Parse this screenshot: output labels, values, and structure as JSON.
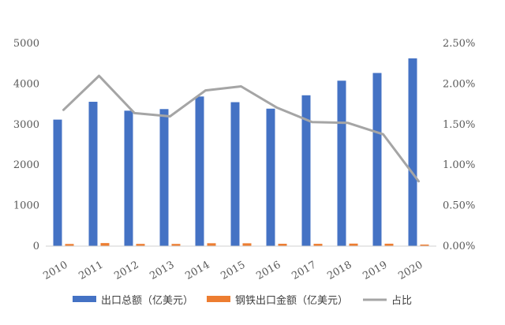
{
  "chart_data": {
    "type": "bar",
    "categories": [
      "2010",
      "2011",
      "2012",
      "2013",
      "2014",
      "2015",
      "2016",
      "2017",
      "2018",
      "2019",
      "2020"
    ],
    "series": [
      {
        "name": "出口总额（亿美元）",
        "type": "bar",
        "axis": "left",
        "color": "#4472C4",
        "values": [
          3120,
          3560,
          3340,
          3380,
          3690,
          3550,
          3390,
          3720,
          4080,
          4270,
          4630
        ]
      },
      {
        "name": "钢铁出口金额（亿美元）",
        "type": "bar",
        "axis": "left",
        "color": "#ED7D31",
        "values": [
          53,
          75,
          55,
          54,
          71,
          70,
          58,
          57,
          62,
          60,
          38
        ]
      },
      {
        "name": "占比",
        "type": "line",
        "axis": "right",
        "color": "#A5A5A5",
        "values": [
          0.0168,
          0.021,
          0.0164,
          0.016,
          0.0192,
          0.0197,
          0.0171,
          0.0153,
          0.0152,
          0.0138,
          0.008
        ]
      }
    ],
    "y_left": {
      "ylim": [
        0,
        5000
      ],
      "ticks": [
        0,
        1000,
        2000,
        3000,
        4000,
        5000
      ],
      "tick_labels": [
        "0",
        "1000",
        "2000",
        "3000",
        "4000",
        "5000"
      ]
    },
    "y_right": {
      "ylim": [
        0,
        0.025
      ],
      "ticks": [
        0,
        0.005,
        0.01,
        0.015,
        0.02,
        0.025
      ],
      "tick_labels": [
        "0.00%",
        "0.50%",
        "1.00%",
        "1.50%",
        "2.00%",
        "2.50%"
      ]
    },
    "grid": false,
    "legend_position": "bottom"
  }
}
